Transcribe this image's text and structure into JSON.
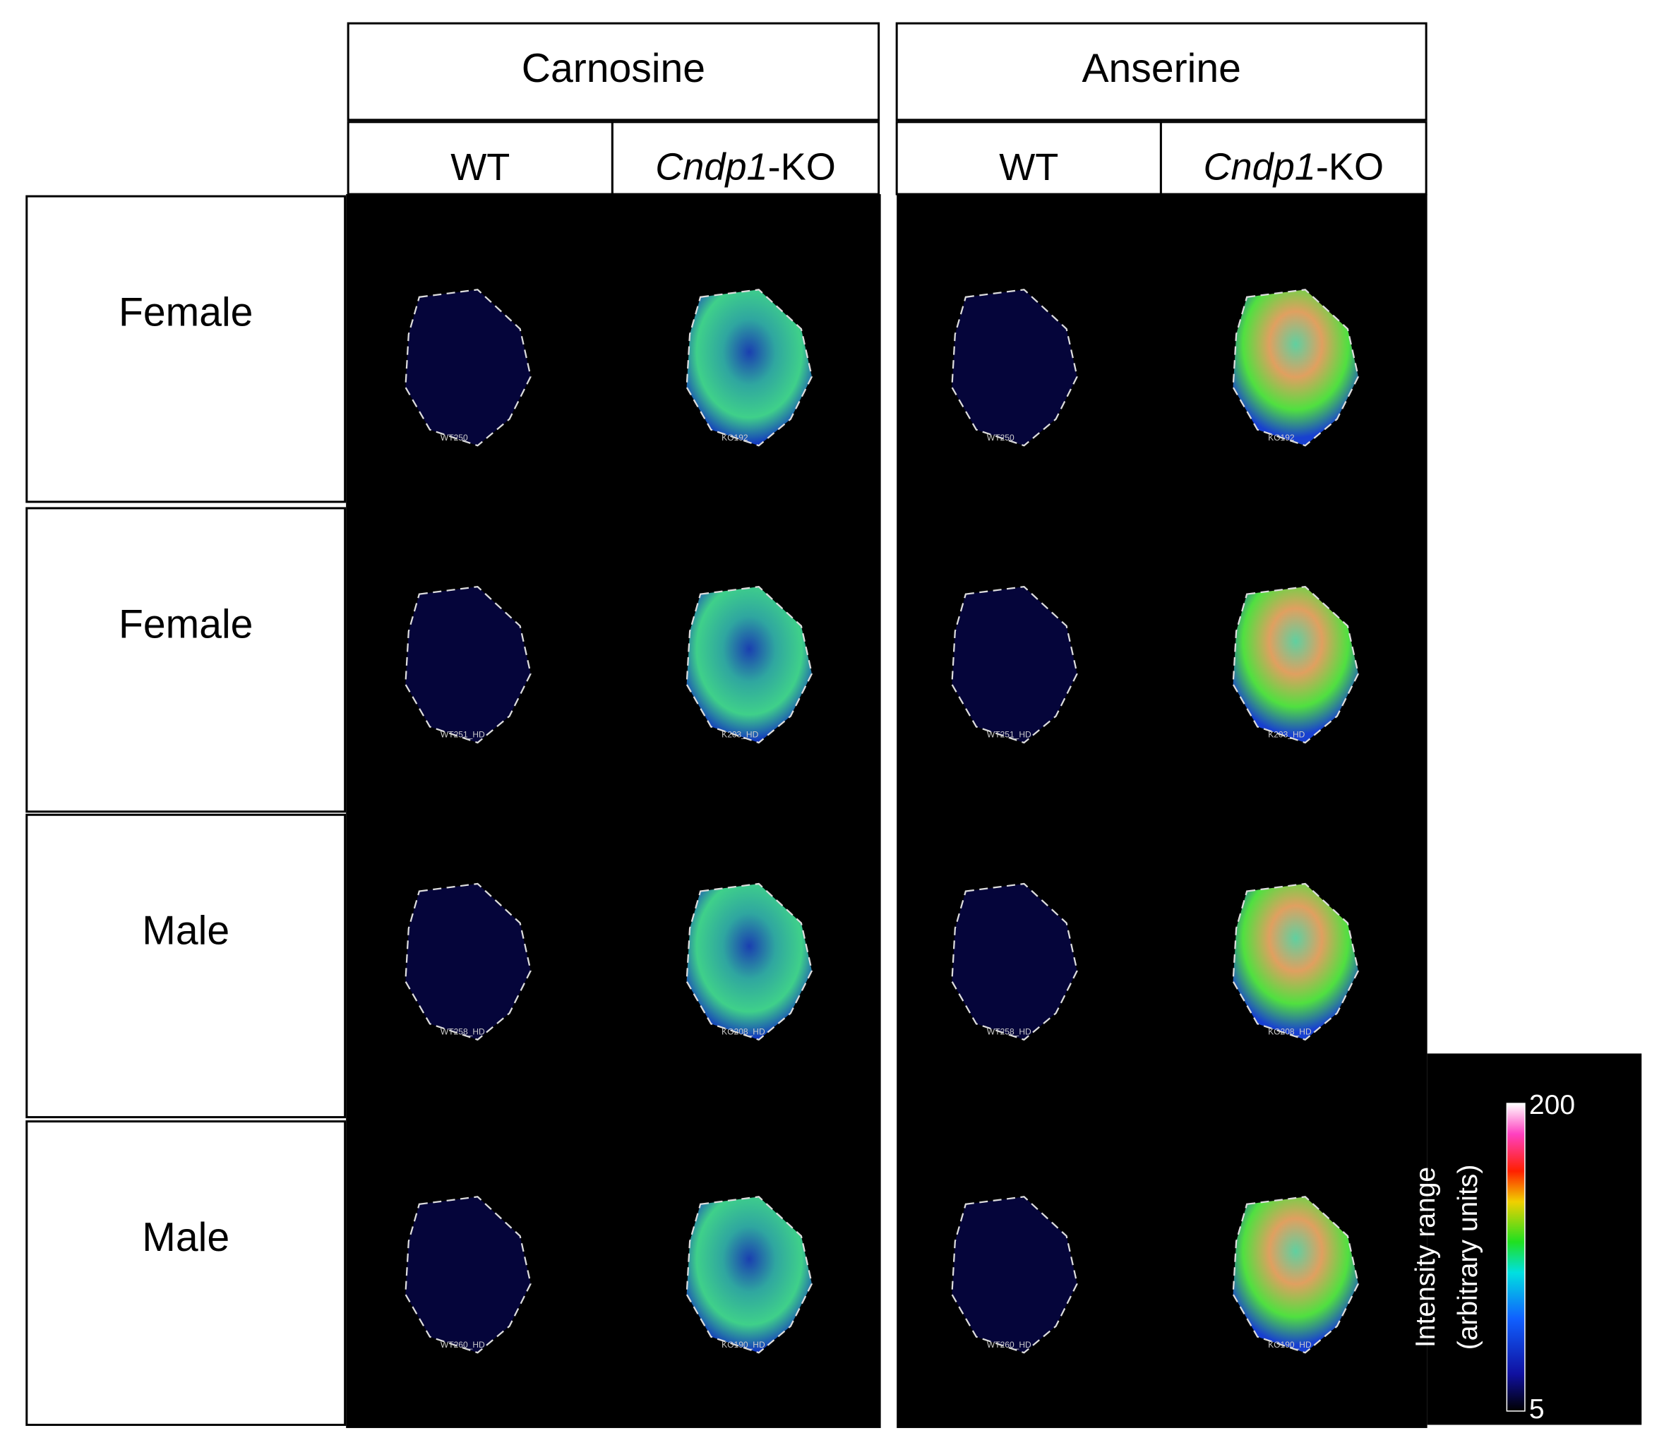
{
  "metabolites": [
    {
      "name": "Carnosine",
      "columns": [
        "WT",
        {
          "gene": "Cndp1",
          "suffix": "-KO"
        }
      ],
      "samples": [
        [
          "WT250",
          "KO192"
        ],
        [
          "WT251_HD",
          "K203_HD"
        ],
        [
          "WT258_HD",
          "KO208_HD"
        ],
        [
          "WT260_HD",
          "KO190_HD"
        ]
      ]
    },
    {
      "name": "Anserine",
      "columns": [
        "WT",
        {
          "gene": "Cndp1",
          "suffix": "-KO"
        }
      ],
      "samples": [
        [
          "WT250",
          "KO192"
        ],
        [
          "WT251_HD",
          "K203_HD"
        ],
        [
          "WT258_HD",
          "KO208_HD"
        ],
        [
          "WT260_HD",
          "KO190_HD"
        ]
      ]
    }
  ],
  "rows": [
    "Female",
    "Female",
    "Male",
    "Male"
  ],
  "colorbar": {
    "title": "Intensity range",
    "unit": "(arbitrary units)",
    "max": 200,
    "min": 5
  }
}
